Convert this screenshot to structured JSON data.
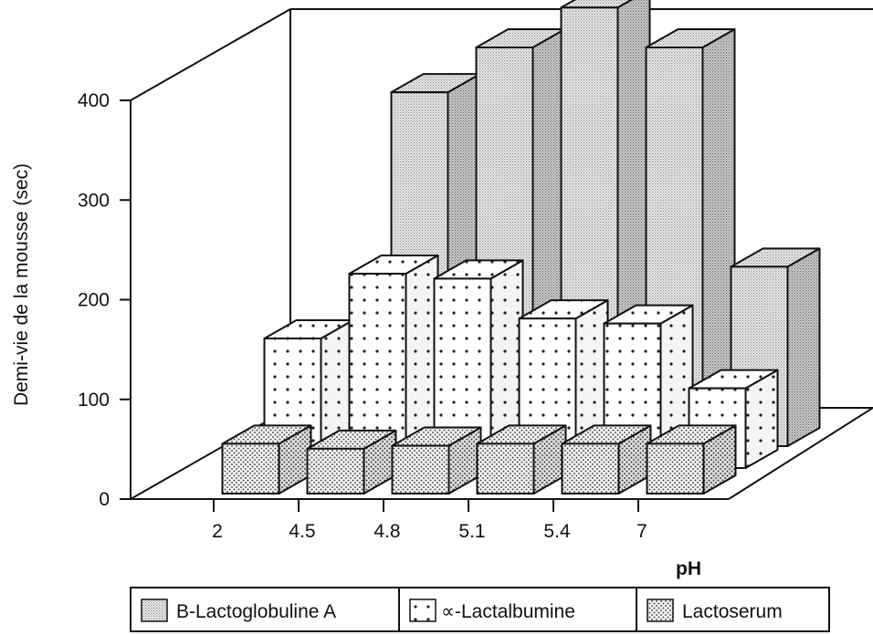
{
  "chart_data": {
    "type": "bar",
    "subtype": "3d-grouped",
    "categories": [
      "2",
      "4.5",
      "4.8",
      "5.1",
      "5.4",
      "7"
    ],
    "series": [
      {
        "name": "B-Lactoglobuline A",
        "values": [
          null,
          355,
          400,
          440,
          400,
          180
        ],
        "pattern": "fine-gray"
      },
      {
        "name": "∝-Lactalbumine",
        "values": [
          130,
          195,
          190,
          150,
          145,
          80
        ],
        "pattern": "dots"
      },
      {
        "name": "Lactoserum",
        "values": [
          50,
          45,
          48,
          50,
          50,
          50
        ],
        "pattern": "dense-dots"
      }
    ],
    "ylabel": "Demi-vie de la mousse (sec)",
    "xlabel": "pH",
    "yticks": [
      0,
      100,
      200,
      300,
      400
    ],
    "ylim": [
      0,
      400
    ],
    "legend_position": "bottom"
  }
}
